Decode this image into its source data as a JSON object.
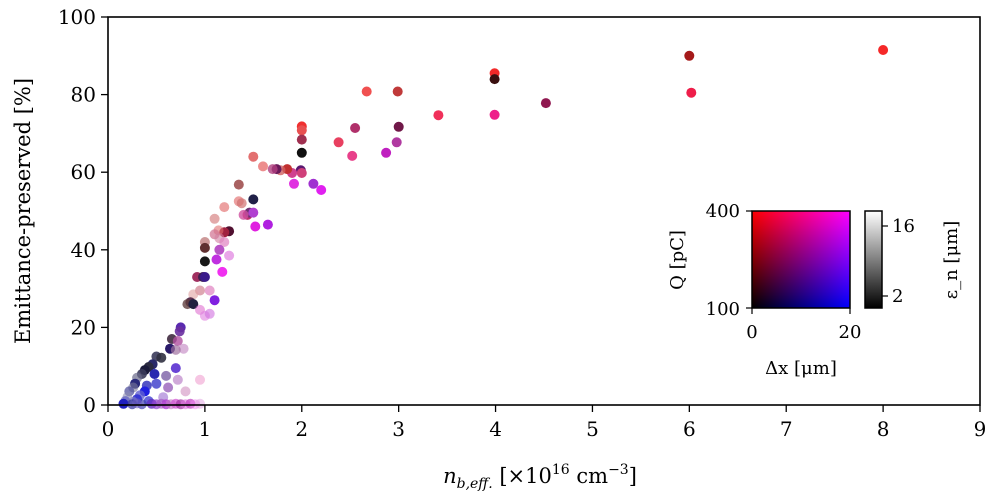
{
  "chart_data": {
    "type": "scatter",
    "xlabel": "n_b,eff. [×10^16 cm^−3]",
    "ylabel": "Emittance-preserved [%]",
    "xlim": [
      0,
      9
    ],
    "ylim": [
      0,
      100
    ],
    "x_ticks": [
      0,
      1,
      2,
      3,
      4,
      5,
      6,
      7,
      8,
      9
    ],
    "y_ticks": [
      0,
      20,
      40,
      60,
      80,
      100
    ],
    "grid": false,
    "legend": "none",
    "inset_colormap": {
      "xlabel": "Δx [μm]",
      "ylabel": "Q [pC]",
      "x_range": [
        0,
        20
      ],
      "y_range": [
        100,
        400
      ],
      "x_tick_labels": [
        "0",
        "20"
      ],
      "y_tick_labels": [
        "100",
        "400"
      ],
      "corner_colors": {
        "low_q_low_dx": "#000000",
        "low_q_high_dx": "#0000ff",
        "high_q_low_dx": "#ff0000",
        "high_q_high_dx": "#ff00ff"
      }
    },
    "inset_colorbar": {
      "label": "ε_n [μm]",
      "range": [
        2,
        16
      ],
      "tick_labels": [
        "2",
        "16"
      ],
      "colors": [
        "#000000",
        "#ffffff"
      ]
    },
    "points": [
      {
        "x": 8.0,
        "y": 91.5,
        "c": "#f52828",
        "a": 1
      },
      {
        "x": 6.0,
        "y": 90.0,
        "c": "#a51a1a",
        "a": 1
      },
      {
        "x": 6.02,
        "y": 80.5,
        "c": "#ee1e4a",
        "a": 1
      },
      {
        "x": 3.99,
        "y": 85.5,
        "c": "#f22828",
        "a": 1
      },
      {
        "x": 3.99,
        "y": 84.0,
        "c": "#3a1010",
        "a": 1
      },
      {
        "x": 3.99,
        "y": 74.8,
        "c": "#ee1e8a",
        "a": 1
      },
      {
        "x": 4.52,
        "y": 77.8,
        "c": "#901850",
        "a": 1
      },
      {
        "x": 3.41,
        "y": 74.7,
        "c": "#f0305a",
        "a": 1
      },
      {
        "x": 2.67,
        "y": 80.8,
        "c": "#f05050",
        "a": 1
      },
      {
        "x": 2.99,
        "y": 80.8,
        "c": "#c03a3a",
        "a": 1
      },
      {
        "x": 3.0,
        "y": 71.7,
        "c": "#701848",
        "a": 1
      },
      {
        "x": 2.98,
        "y": 67.7,
        "c": "#b03aa0",
        "a": 1
      },
      {
        "x": 2.87,
        "y": 65.0,
        "c": "#c020c0",
        "a": 1
      },
      {
        "x": 2.55,
        "y": 71.4,
        "c": "#b0306a",
        "a": 1
      },
      {
        "x": 2.38,
        "y": 67.7,
        "c": "#e84060",
        "a": 1
      },
      {
        "x": 2.52,
        "y": 64.2,
        "c": "#e8408a",
        "a": 1
      },
      {
        "x": 2.0,
        "y": 71.8,
        "c": "#f03030",
        "a": 1
      },
      {
        "x": 2.0,
        "y": 70.8,
        "c": "#e85050",
        "a": 1
      },
      {
        "x": 2.0,
        "y": 68.4,
        "c": "#a03050",
        "a": 1
      },
      {
        "x": 2.0,
        "y": 65.0,
        "c": "#101010",
        "a": 1
      },
      {
        "x": 1.99,
        "y": 60.5,
        "c": "#5a1870",
        "a": 1
      },
      {
        "x": 2.0,
        "y": 59.8,
        "c": "#d0407a",
        "a": 1
      },
      {
        "x": 2.12,
        "y": 57.0,
        "c": "#a030d0",
        "a": 1
      },
      {
        "x": 2.2,
        "y": 55.4,
        "c": "#e020f0",
        "a": 1
      },
      {
        "x": 1.9,
        "y": 59.8,
        "c": "#d04090",
        "a": 1
      },
      {
        "x": 1.92,
        "y": 57.0,
        "c": "#e030e0",
        "a": 1
      },
      {
        "x": 1.85,
        "y": 60.8,
        "c": "#c03030",
        "a": 1
      },
      {
        "x": 1.78,
        "y": 60.5,
        "c": "#d06060",
        "a": 0.8
      },
      {
        "x": 1.74,
        "y": 60.8,
        "c": "#6a1a5a",
        "a": 1
      },
      {
        "x": 1.7,
        "y": 60.8,
        "c": "#b04080",
        "a": 0.8
      },
      {
        "x": 1.6,
        "y": 61.5,
        "c": "#e87070",
        "a": 0.8
      },
      {
        "x": 1.5,
        "y": 64.0,
        "c": "#e06060",
        "a": 0.9
      },
      {
        "x": 1.5,
        "y": 53.0,
        "c": "#202048",
        "a": 1
      },
      {
        "x": 1.35,
        "y": 56.8,
        "c": "#a05050",
        "a": 0.9
      },
      {
        "x": 1.35,
        "y": 52.5,
        "c": "#e06060",
        "a": 0.6
      },
      {
        "x": 1.38,
        "y": 52.0,
        "c": "#d07070",
        "a": 0.7
      },
      {
        "x": 1.44,
        "y": 49.0,
        "c": "#c03070",
        "a": 1
      },
      {
        "x": 1.46,
        "y": 49.6,
        "c": "#6a3070",
        "a": 1
      },
      {
        "x": 1.5,
        "y": 49.6,
        "c": "#b040d0",
        "a": 1
      },
      {
        "x": 1.52,
        "y": 46.0,
        "c": "#e020e0",
        "a": 1
      },
      {
        "x": 1.65,
        "y": 46.5,
        "c": "#b020e0",
        "a": 1
      },
      {
        "x": 1.4,
        "y": 49.0,
        "c": "#d050a0",
        "a": 0.8
      },
      {
        "x": 1.2,
        "y": 51.0,
        "c": "#e06060",
        "a": 0.6
      },
      {
        "x": 1.1,
        "y": 48.0,
        "c": "#d07070",
        "a": 0.6
      },
      {
        "x": 1.25,
        "y": 44.8,
        "c": "#501030",
        "a": 1
      },
      {
        "x": 1.2,
        "y": 44.5,
        "c": "#a02040",
        "a": 1
      },
      {
        "x": 1.14,
        "y": 45.0,
        "c": "#e07070",
        "a": 0.6
      },
      {
        "x": 1.0,
        "y": 42.0,
        "c": "#c08080",
        "a": 0.8
      },
      {
        "x": 1.1,
        "y": 44.0,
        "c": "#d07090",
        "a": 0.7
      },
      {
        "x": 1.15,
        "y": 43.0,
        "c": "#d080a0",
        "a": 0.6
      },
      {
        "x": 1.0,
        "y": 40.5,
        "c": "#603030",
        "a": 1
      },
      {
        "x": 1.2,
        "y": 42.0,
        "c": "#e080c0",
        "a": 0.7
      },
      {
        "x": 1.15,
        "y": 40.0,
        "c": "#b040c0",
        "a": 0.9
      },
      {
        "x": 1.25,
        "y": 38.5,
        "c": "#e080e0",
        "a": 0.7
      },
      {
        "x": 1.12,
        "y": 37.5,
        "c": "#c030e0",
        "a": 1
      },
      {
        "x": 1.18,
        "y": 34.3,
        "c": "#f030f0",
        "a": 1
      },
      {
        "x": 1.0,
        "y": 37.0,
        "c": "#181818",
        "a": 1
      },
      {
        "x": 0.92,
        "y": 33.0,
        "c": "#a03060",
        "a": 1
      },
      {
        "x": 0.98,
        "y": 33.0,
        "c": "#402050",
        "a": 1
      },
      {
        "x": 1.0,
        "y": 33.0,
        "c": "#3a1a8a",
        "a": 1
      },
      {
        "x": 0.95,
        "y": 29.5,
        "c": "#d08090",
        "a": 0.7
      },
      {
        "x": 1.05,
        "y": 29.5,
        "c": "#e080c0",
        "a": 0.7
      },
      {
        "x": 0.88,
        "y": 28.5,
        "c": "#e0a0a0",
        "a": 0.6
      },
      {
        "x": 1.1,
        "y": 27.0,
        "c": "#8020e0",
        "a": 1
      },
      {
        "x": 0.85,
        "y": 26.5,
        "c": "#5a3050",
        "a": 1
      },
      {
        "x": 0.82,
        "y": 26.0,
        "c": "#604040",
        "a": 0.8
      },
      {
        "x": 0.88,
        "y": 26.0,
        "c": "#202040",
        "a": 1
      },
      {
        "x": 0.95,
        "y": 24.5,
        "c": "#e070d0",
        "a": 0.6
      },
      {
        "x": 1.0,
        "y": 23.0,
        "c": "#e080e0",
        "a": 0.6
      },
      {
        "x": 1.05,
        "y": 23.5,
        "c": "#d070e0",
        "a": 0.6
      },
      {
        "x": 0.75,
        "y": 20.0,
        "c": "#5a2ab0",
        "a": 1
      },
      {
        "x": 0.74,
        "y": 19.0,
        "c": "#6a30a0",
        "a": 0.9
      },
      {
        "x": 0.66,
        "y": 17.0,
        "c": "#402a40",
        "a": 0.9
      },
      {
        "x": 0.72,
        "y": 16.5,
        "c": "#b050a0",
        "a": 0.8
      },
      {
        "x": 0.78,
        "y": 14.5,
        "c": "#c080c0",
        "a": 0.6
      },
      {
        "x": 0.64,
        "y": 14.5,
        "c": "#2a1a6a",
        "a": 1
      },
      {
        "x": 0.7,
        "y": 14.2,
        "c": "#a070a0",
        "a": 0.7
      },
      {
        "x": 0.5,
        "y": 12.5,
        "c": "#3a3a5a",
        "a": 0.9
      },
      {
        "x": 0.55,
        "y": 12.2,
        "c": "#303040",
        "a": 0.9
      },
      {
        "x": 0.46,
        "y": 10.5,
        "c": "#2a2a6a",
        "a": 1
      },
      {
        "x": 0.42,
        "y": 9.8,
        "c": "#2a2a40",
        "a": 1
      },
      {
        "x": 0.38,
        "y": 9.0,
        "c": "#1a1a3a",
        "a": 1
      },
      {
        "x": 0.35,
        "y": 8.0,
        "c": "#3a3a5a",
        "a": 0.9
      },
      {
        "x": 0.3,
        "y": 7.0,
        "c": "#6a6a8a",
        "a": 0.7
      },
      {
        "x": 0.28,
        "y": 5.5,
        "c": "#2a2a7a",
        "a": 1
      },
      {
        "x": 0.26,
        "y": 4.5,
        "c": "#7a7a9a",
        "a": 0.6
      },
      {
        "x": 0.22,
        "y": 3.5,
        "c": "#4a4a9a",
        "a": 0.7
      },
      {
        "x": 0.2,
        "y": 2.0,
        "c": "#8a8ab0",
        "a": 0.6
      },
      {
        "x": 0.18,
        "y": 1.0,
        "c": "#5a5ac0",
        "a": 0.7
      },
      {
        "x": 0.16,
        "y": 0.3,
        "c": "#2020c0",
        "a": 1
      },
      {
        "x": 0.48,
        "y": 8.0,
        "c": "#2a2ab0",
        "a": 1
      },
      {
        "x": 0.5,
        "y": 5.5,
        "c": "#5050d0",
        "a": 0.9
      },
      {
        "x": 0.4,
        "y": 5.0,
        "c": "#4040c0",
        "a": 0.9
      },
      {
        "x": 0.38,
        "y": 3.5,
        "c": "#2020e0",
        "a": 1
      },
      {
        "x": 0.33,
        "y": 2.5,
        "c": "#6060d0",
        "a": 0.8
      },
      {
        "x": 0.3,
        "y": 1.5,
        "c": "#3030d0",
        "a": 0.9
      },
      {
        "x": 0.26,
        "y": 0.8,
        "c": "#8080c0",
        "a": 0.6
      },
      {
        "x": 0.42,
        "y": 1.0,
        "c": "#4040d0",
        "a": 0.8
      },
      {
        "x": 0.6,
        "y": 7.5,
        "c": "#6a4a9a",
        "a": 0.7
      },
      {
        "x": 0.62,
        "y": 4.5,
        "c": "#8a4ab0",
        "a": 0.7
      },
      {
        "x": 0.7,
        "y": 9.5,
        "c": "#5a30d0",
        "a": 0.9
      },
      {
        "x": 0.72,
        "y": 6.5,
        "c": "#b070c0",
        "a": 0.6
      },
      {
        "x": 0.57,
        "y": 2.0,
        "c": "#9a6ad0",
        "a": 0.6
      },
      {
        "x": 0.8,
        "y": 3.5,
        "c": "#d090c0",
        "a": 0.6
      },
      {
        "x": 0.95,
        "y": 6.5,
        "c": "#f0a0d0",
        "a": 0.6
      },
      {
        "x": 0.45,
        "y": 0.3,
        "c": "#6030c0",
        "a": 0.8
      },
      {
        "x": 0.5,
        "y": 0.2,
        "c": "#9040d0",
        "a": 0.7
      },
      {
        "x": 0.55,
        "y": 0.3,
        "c": "#a050c0",
        "a": 0.6
      },
      {
        "x": 0.6,
        "y": 0.2,
        "c": "#b040d0",
        "a": 0.8
      },
      {
        "x": 0.65,
        "y": 0.2,
        "c": "#c070c0",
        "a": 0.6
      },
      {
        "x": 0.7,
        "y": 0.3,
        "c": "#d050d0",
        "a": 0.7
      },
      {
        "x": 0.75,
        "y": 0.2,
        "c": "#a030a0",
        "a": 0.7
      },
      {
        "x": 0.8,
        "y": 0.2,
        "c": "#e070e0",
        "a": 0.6
      },
      {
        "x": 0.85,
        "y": 0.3,
        "c": "#c040c0",
        "a": 0.7
      },
      {
        "x": 0.9,
        "y": 0.2,
        "c": "#f080f0",
        "a": 0.5
      },
      {
        "x": 0.95,
        "y": 0.3,
        "c": "#e0a0e0",
        "a": 0.5
      },
      {
        "x": 0.35,
        "y": 0.2,
        "c": "#4040b0",
        "a": 0.7
      },
      {
        "x": 0.25,
        "y": 0.2,
        "c": "#3030a0",
        "a": 0.7
      },
      {
        "x": 0.3,
        "y": 0.4,
        "c": "#7060c0",
        "a": 0.6
      }
    ]
  }
}
